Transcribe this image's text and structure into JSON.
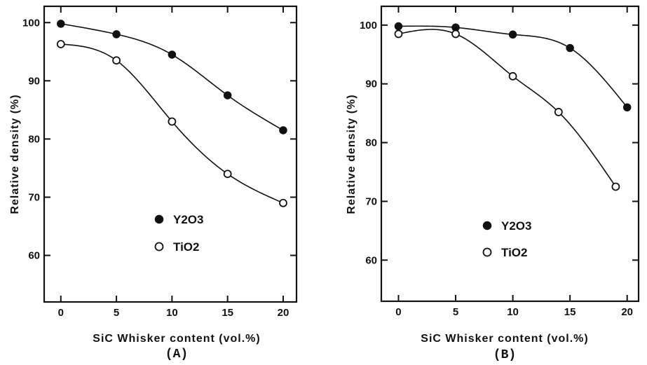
{
  "chart_data": [
    {
      "type": "scatter",
      "panel_label": "(A)",
      "xlabel": "SiC Whisker content (vol.%)",
      "ylabel": "Relative density (%)",
      "xlim": [
        -1.5,
        21.2
      ],
      "ylim": [
        52,
        102.8
      ],
      "xticks": [
        0,
        5,
        10,
        15,
        20
      ],
      "yticks": [
        60,
        70,
        80,
        90,
        100
      ],
      "legend_position": "lower-left",
      "series": [
        {
          "name": "Y2O3",
          "marker": "filled-circle",
          "x": [
            0,
            5,
            10,
            15,
            20
          ],
          "values": [
            99.8,
            98.0,
            94.5,
            87.5,
            81.5
          ]
        },
        {
          "name": "TiO2",
          "marker": "open-circle",
          "x": [
            0,
            5,
            10,
            15,
            20
          ],
          "values": [
            96.3,
            93.5,
            83.0,
            74.0,
            69.0
          ]
        }
      ]
    },
    {
      "type": "scatter",
      "panel_label": "(B)",
      "xlabel": "SiC Whisker content (vol.%)",
      "ylabel": "Relative density (%)",
      "xlim": [
        -1.5,
        21.0
      ],
      "ylim": [
        53,
        103.2
      ],
      "xticks": [
        0,
        5,
        10,
        15,
        20
      ],
      "yticks": [
        60,
        70,
        80,
        90,
        100
      ],
      "legend_position": "lower-left",
      "series": [
        {
          "name": "Y2O3",
          "marker": "filled-circle",
          "x": [
            0,
            5,
            10,
            15,
            20
          ],
          "values": [
            99.8,
            99.6,
            98.4,
            96.1,
            86.0
          ]
        },
        {
          "name": "TiO2",
          "marker": "open-circle",
          "x": [
            0,
            5,
            10,
            14,
            19
          ],
          "values": [
            98.5,
            98.5,
            91.3,
            85.2,
            72.5
          ]
        }
      ]
    }
  ]
}
